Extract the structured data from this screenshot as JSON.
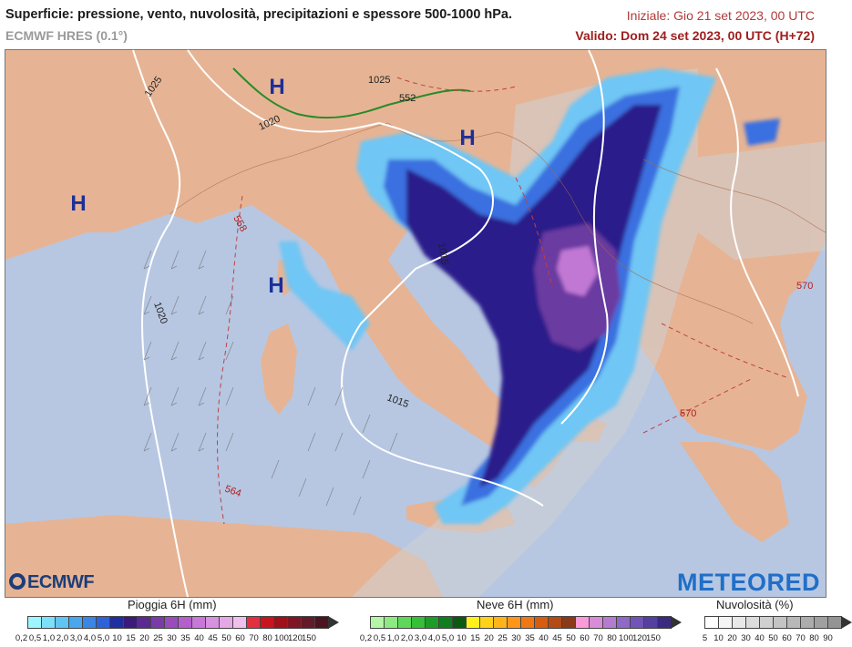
{
  "header": {
    "title": "Superficie: pressione, vento, nuvolosità, precipitazioni e spessore 500-1000 hPa.",
    "model": "ECMWF HRES (0.1°)",
    "init": "Iniziale: Gio 21 set 2023, 00 UTC",
    "valid": "Valido: Dom 24 set 2023, 00 UTC (H+72)"
  },
  "map": {
    "pressure_centers": [
      "H",
      "H",
      "H",
      "H"
    ],
    "isobar_labels": [
      "1025",
      "1025",
      "1020",
      "1020",
      "1015",
      "1015"
    ],
    "thickness_labels": [
      "552",
      "558",
      "564",
      "570",
      "570"
    ],
    "colors": {
      "sea": "#b7c7e2",
      "land": "#e6b494",
      "isobar": "#ffffff",
      "thickness": "#c04040",
      "freezing": "#2a8a2a",
      "rain_dark": "#2b1a8a",
      "rain_mid": "#3a6fe0",
      "rain_light": "#6fc6f4"
    }
  },
  "logos": {
    "left": "ECMWF",
    "right": "METEORED"
  },
  "legends": {
    "rain": {
      "title": "Pioggia 6H (mm)",
      "labels": [
        "0,2",
        "0,5",
        "1,0",
        "2,0",
        "3,0",
        "4,0",
        "5,0",
        "10",
        "15",
        "20",
        "25",
        "30",
        "35",
        "40",
        "45",
        "50",
        "60",
        "70",
        "80",
        "100",
        "120",
        "150"
      ],
      "colors": [
        "#9ff5ff",
        "#7de0fb",
        "#5fc5f5",
        "#4aa6ee",
        "#3a86e4",
        "#2d63d6",
        "#1f2f9e",
        "#3b1a7a",
        "#5a2a92",
        "#7a3aa8",
        "#9a4cbc",
        "#b45fcc",
        "#c878d8",
        "#d890e0",
        "#e4a8e6",
        "#f0c0ec",
        "#e23040",
        "#c8141e",
        "#a0101a",
        "#801424",
        "#641a28",
        "#4a1420"
      ]
    },
    "snow": {
      "title": "Neve 6H (mm)",
      "labels": [
        "0,2",
        "0,5",
        "1,0",
        "2,0",
        "3,0",
        "4,0",
        "5,0",
        "10",
        "15",
        "20",
        "25",
        "30",
        "35",
        "40",
        "45",
        "50",
        "60",
        "70",
        "80",
        "100",
        "120",
        "150"
      ],
      "colors": [
        "#b5f5a8",
        "#8cea80",
        "#5fd75a",
        "#35c038",
        "#1c9e26",
        "#0f7f1e",
        "#0a5a14",
        "#fff21a",
        "#ffd21a",
        "#ffb41a",
        "#ff961a",
        "#f07814",
        "#d85c10",
        "#b44a14",
        "#8a3a18",
        "#fa9ad8",
        "#d88cd8",
        "#b47cd0",
        "#9068c8",
        "#7054b8",
        "#5440a0",
        "#3a2a80"
      ]
    },
    "clouds": {
      "title": "Nuvolosità (%)",
      "labels": [
        "5",
        "10",
        "20",
        "30",
        "40",
        "50",
        "60",
        "70",
        "80",
        "90"
      ],
      "colors": [
        "#ffffff",
        "#f4f4f4",
        "#e8e8e8",
        "#dcdcdc",
        "#d0d0d0",
        "#c4c4c4",
        "#b8b8b8",
        "#acacac",
        "#a0a0a0",
        "#949494"
      ]
    }
  }
}
